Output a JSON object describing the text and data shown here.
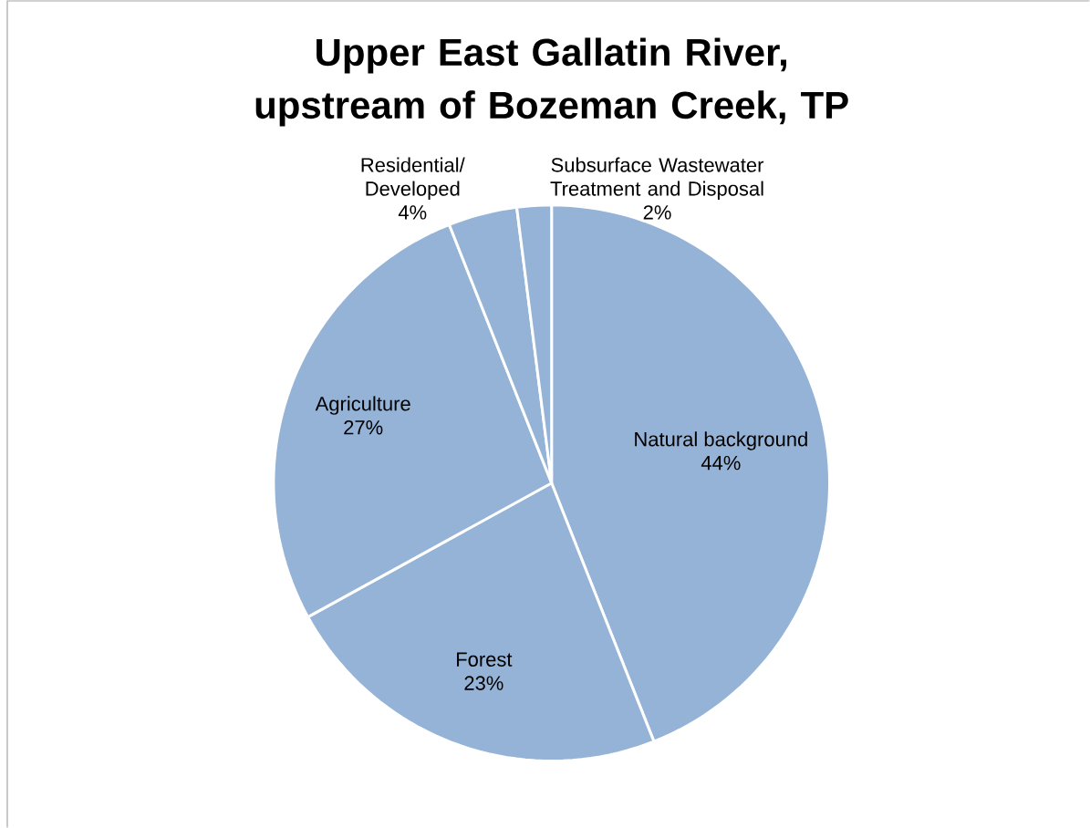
{
  "chart_data": {
    "type": "pie",
    "title": "Upper East Gallatin River, upstream of Bozeman Creek, TP",
    "categories": [
      "Natural background",
      "Forest",
      "Agriculture",
      "Residential/ Developed",
      "Subsurface Wastewater Treatment and Disposal"
    ],
    "values": [
      44,
      23,
      27,
      4,
      2
    ],
    "colors": [
      "#95b3d7",
      "#95b3d7",
      "#95b3d7",
      "#95b3d7",
      "#95b3d7"
    ],
    "value_labels": [
      "44%",
      "23%",
      "27%",
      "4%",
      "2%"
    ]
  }
}
